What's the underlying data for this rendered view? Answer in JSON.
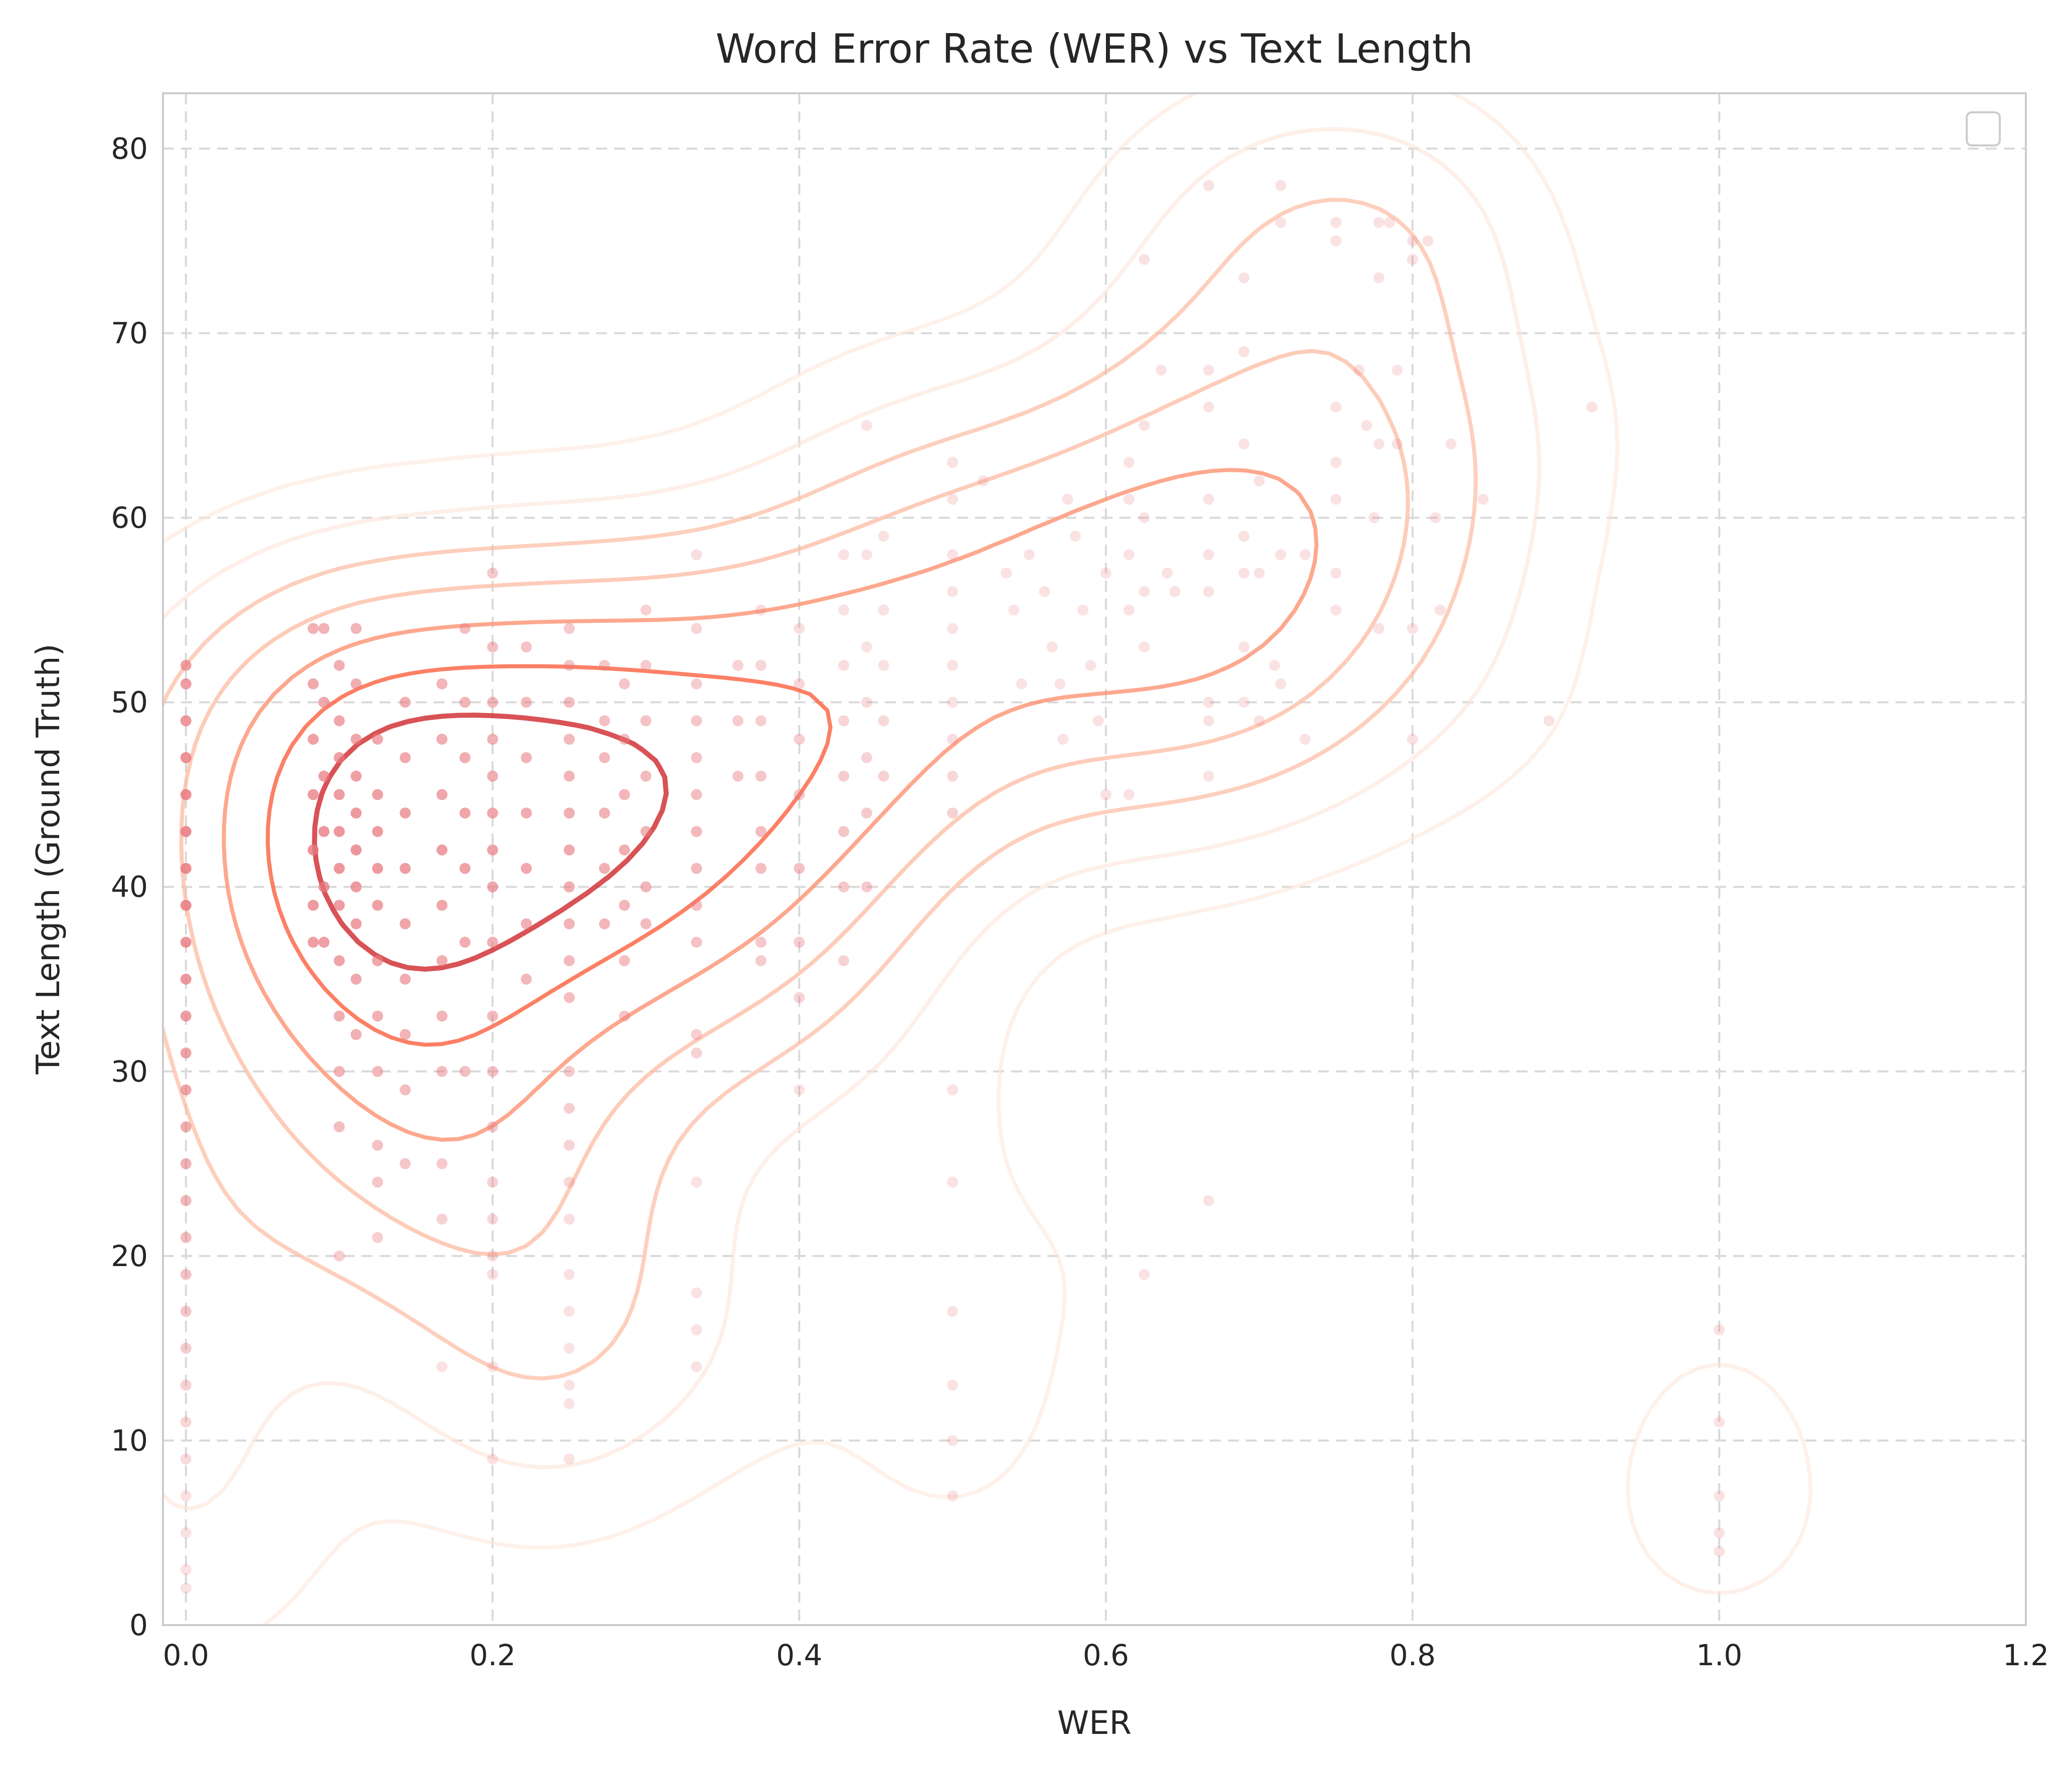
{
  "chart_data": {
    "type": "scatter",
    "title": "Word Error Rate (WER) vs Text Length",
    "xlabel": "WER",
    "ylabel": "Text Length (Ground Truth)",
    "xlim": [
      -0.015,
      1.2
    ],
    "ylim": [
      0,
      83
    ],
    "xticks": [
      "0.0",
      "0.2",
      "0.4",
      "0.6",
      "0.8",
      "1.0",
      "1.2"
    ],
    "yticks": [
      "0",
      "10",
      "20",
      "30",
      "40",
      "50",
      "60",
      "70",
      "80"
    ],
    "grid": true,
    "legend": "top-right (empty)",
    "point_color": "#e8797f",
    "contour_colors": [
      "#fee5d9",
      "#fcbba1",
      "#fc9272",
      "#fb6a4a",
      "#cb181d"
    ],
    "series": [
      {
        "values": [
          [
            0.0,
            2
          ],
          [
            0.0,
            3
          ],
          [
            0.0,
            5
          ],
          [
            0.0,
            7
          ],
          [
            0.0,
            9
          ],
          [
            0.0,
            11
          ],
          [
            0.0,
            13
          ],
          [
            0.0,
            15
          ],
          [
            0.0,
            17
          ],
          [
            0.0,
            19
          ],
          [
            0.0,
            21
          ],
          [
            0.0,
            23
          ],
          [
            0.0,
            25
          ],
          [
            0.0,
            27
          ],
          [
            0.0,
            29
          ],
          [
            0.0,
            31
          ],
          [
            0.0,
            33
          ],
          [
            0.0,
            35
          ],
          [
            0.0,
            37
          ],
          [
            0.0,
            39
          ],
          [
            0.0,
            41
          ],
          [
            0.0,
            43
          ],
          [
            0.0,
            45
          ],
          [
            0.0,
            47
          ],
          [
            0.0,
            49
          ],
          [
            0.0,
            51
          ],
          [
            0.0,
            52
          ],
          [
            0.083,
            54
          ],
          [
            0.083,
            51
          ],
          [
            0.083,
            48
          ],
          [
            0.083,
            45
          ],
          [
            0.083,
            42
          ],
          [
            0.083,
            39
          ],
          [
            0.083,
            37
          ],
          [
            0.09,
            54
          ],
          [
            0.09,
            50
          ],
          [
            0.09,
            46
          ],
          [
            0.09,
            43
          ],
          [
            0.09,
            40
          ],
          [
            0.09,
            37
          ],
          [
            0.1,
            52
          ],
          [
            0.1,
            49
          ],
          [
            0.1,
            47
          ],
          [
            0.1,
            45
          ],
          [
            0.1,
            43
          ],
          [
            0.1,
            41
          ],
          [
            0.1,
            39
          ],
          [
            0.1,
            36
          ],
          [
            0.1,
            33
          ],
          [
            0.1,
            30
          ],
          [
            0.1,
            27
          ],
          [
            0.1,
            20
          ],
          [
            0.111,
            54
          ],
          [
            0.111,
            51
          ],
          [
            0.111,
            48
          ],
          [
            0.111,
            46
          ],
          [
            0.111,
            44
          ],
          [
            0.111,
            42
          ],
          [
            0.111,
            40
          ],
          [
            0.111,
            38
          ],
          [
            0.111,
            35
          ],
          [
            0.111,
            32
          ],
          [
            0.125,
            48
          ],
          [
            0.125,
            45
          ],
          [
            0.125,
            43
          ],
          [
            0.125,
            41
          ],
          [
            0.125,
            39
          ],
          [
            0.125,
            36
          ],
          [
            0.125,
            33
          ],
          [
            0.125,
            30
          ],
          [
            0.125,
            26
          ],
          [
            0.125,
            24
          ],
          [
            0.125,
            21
          ],
          [
            0.143,
            50
          ],
          [
            0.143,
            47
          ],
          [
            0.143,
            44
          ],
          [
            0.143,
            41
          ],
          [
            0.143,
            38
          ],
          [
            0.143,
            35
          ],
          [
            0.143,
            32
          ],
          [
            0.143,
            29
          ],
          [
            0.143,
            25
          ],
          [
            0.167,
            51
          ],
          [
            0.167,
            48
          ],
          [
            0.167,
            45
          ],
          [
            0.167,
            42
          ],
          [
            0.167,
            39
          ],
          [
            0.167,
            36
          ],
          [
            0.167,
            33
          ],
          [
            0.167,
            30
          ],
          [
            0.167,
            25
          ],
          [
            0.167,
            22
          ],
          [
            0.167,
            14
          ],
          [
            0.182,
            54
          ],
          [
            0.182,
            50
          ],
          [
            0.182,
            47
          ],
          [
            0.182,
            44
          ],
          [
            0.182,
            41
          ],
          [
            0.182,
            37
          ],
          [
            0.182,
            30
          ],
          [
            0.2,
            57
          ],
          [
            0.2,
            53
          ],
          [
            0.2,
            50
          ],
          [
            0.2,
            48
          ],
          [
            0.2,
            46
          ],
          [
            0.2,
            44
          ],
          [
            0.2,
            42
          ],
          [
            0.2,
            40
          ],
          [
            0.2,
            37
          ],
          [
            0.2,
            33
          ],
          [
            0.2,
            30
          ],
          [
            0.2,
            27
          ],
          [
            0.2,
            24
          ],
          [
            0.2,
            22
          ],
          [
            0.2,
            20
          ],
          [
            0.2,
            19
          ],
          [
            0.2,
            14
          ],
          [
            0.2,
            9
          ],
          [
            0.222,
            53
          ],
          [
            0.222,
            50
          ],
          [
            0.222,
            47
          ],
          [
            0.222,
            44
          ],
          [
            0.222,
            41
          ],
          [
            0.222,
            38
          ],
          [
            0.222,
            35
          ],
          [
            0.25,
            54
          ],
          [
            0.25,
            52
          ],
          [
            0.25,
            50
          ],
          [
            0.25,
            48
          ],
          [
            0.25,
            46
          ],
          [
            0.25,
            44
          ],
          [
            0.25,
            42
          ],
          [
            0.25,
            40
          ],
          [
            0.25,
            38
          ],
          [
            0.25,
            36
          ],
          [
            0.25,
            34
          ],
          [
            0.25,
            30
          ],
          [
            0.25,
            28
          ],
          [
            0.25,
            26
          ],
          [
            0.25,
            24
          ],
          [
            0.25,
            22
          ],
          [
            0.25,
            19
          ],
          [
            0.25,
            17
          ],
          [
            0.25,
            15
          ],
          [
            0.25,
            13
          ],
          [
            0.25,
            12
          ],
          [
            0.25,
            9
          ],
          [
            0.273,
            52
          ],
          [
            0.273,
            49
          ],
          [
            0.273,
            47
          ],
          [
            0.273,
            44
          ],
          [
            0.273,
            41
          ],
          [
            0.273,
            38
          ],
          [
            0.286,
            51
          ],
          [
            0.286,
            48
          ],
          [
            0.286,
            45
          ],
          [
            0.286,
            42
          ],
          [
            0.286,
            39
          ],
          [
            0.286,
            36
          ],
          [
            0.286,
            33
          ],
          [
            0.3,
            55
          ],
          [
            0.3,
            52
          ],
          [
            0.3,
            49
          ],
          [
            0.3,
            46
          ],
          [
            0.3,
            43
          ],
          [
            0.3,
            40
          ],
          [
            0.3,
            38
          ],
          [
            0.333,
            58
          ],
          [
            0.333,
            54
          ],
          [
            0.333,
            51
          ],
          [
            0.333,
            49
          ],
          [
            0.333,
            47
          ],
          [
            0.333,
            45
          ],
          [
            0.333,
            43
          ],
          [
            0.333,
            41
          ],
          [
            0.333,
            39
          ],
          [
            0.333,
            37
          ],
          [
            0.333,
            32
          ],
          [
            0.333,
            31
          ],
          [
            0.333,
            24
          ],
          [
            0.333,
            18
          ],
          [
            0.333,
            16
          ],
          [
            0.333,
            14
          ],
          [
            0.36,
            52
          ],
          [
            0.36,
            49
          ],
          [
            0.36,
            46
          ],
          [
            0.375,
            55
          ],
          [
            0.375,
            52
          ],
          [
            0.375,
            49
          ],
          [
            0.375,
            46
          ],
          [
            0.375,
            43
          ],
          [
            0.375,
            41
          ],
          [
            0.375,
            37
          ],
          [
            0.375,
            36
          ],
          [
            0.4,
            54
          ],
          [
            0.4,
            51
          ],
          [
            0.4,
            48
          ],
          [
            0.4,
            45
          ],
          [
            0.4,
            41
          ],
          [
            0.4,
            37
          ],
          [
            0.4,
            34
          ],
          [
            0.4,
            29
          ],
          [
            0.429,
            58
          ],
          [
            0.429,
            55
          ],
          [
            0.429,
            52
          ],
          [
            0.429,
            49
          ],
          [
            0.429,
            46
          ],
          [
            0.429,
            43
          ],
          [
            0.429,
            40
          ],
          [
            0.429,
            36
          ],
          [
            0.444,
            65
          ],
          [
            0.444,
            58
          ],
          [
            0.444,
            53
          ],
          [
            0.444,
            50
          ],
          [
            0.444,
            47
          ],
          [
            0.444,
            44
          ],
          [
            0.444,
            40
          ],
          [
            0.455,
            59
          ],
          [
            0.455,
            55
          ],
          [
            0.455,
            52
          ],
          [
            0.455,
            49
          ],
          [
            0.455,
            46
          ],
          [
            0.5,
            63
          ],
          [
            0.5,
            61
          ],
          [
            0.5,
            58
          ],
          [
            0.5,
            56
          ],
          [
            0.5,
            54
          ],
          [
            0.5,
            52
          ],
          [
            0.5,
            50
          ],
          [
            0.5,
            48
          ],
          [
            0.5,
            46
          ],
          [
            0.5,
            44
          ],
          [
            0.5,
            29
          ],
          [
            0.5,
            24
          ],
          [
            0.5,
            17
          ],
          [
            0.5,
            13
          ],
          [
            0.5,
            10
          ],
          [
            0.5,
            7
          ],
          [
            0.52,
            62
          ],
          [
            0.535,
            57
          ],
          [
            0.54,
            55
          ],
          [
            0.545,
            51
          ],
          [
            0.55,
            58
          ],
          [
            0.56,
            56
          ],
          [
            0.565,
            53
          ],
          [
            0.57,
            51
          ],
          [
            0.572,
            48
          ],
          [
            0.575,
            61
          ],
          [
            0.58,
            59
          ],
          [
            0.585,
            55
          ],
          [
            0.59,
            52
          ],
          [
            0.595,
            49
          ],
          [
            0.6,
            57
          ],
          [
            0.6,
            45
          ],
          [
            0.615,
            63
          ],
          [
            0.615,
            61
          ],
          [
            0.615,
            58
          ],
          [
            0.615,
            55
          ],
          [
            0.615,
            45
          ],
          [
            0.625,
            74
          ],
          [
            0.625,
            65
          ],
          [
            0.625,
            60
          ],
          [
            0.625,
            56
          ],
          [
            0.625,
            53
          ],
          [
            0.625,
            19
          ],
          [
            0.636,
            68
          ],
          [
            0.64,
            57
          ],
          [
            0.645,
            56
          ],
          [
            0.667,
            78
          ],
          [
            0.667,
            68
          ],
          [
            0.667,
            66
          ],
          [
            0.667,
            61
          ],
          [
            0.667,
            58
          ],
          [
            0.667,
            56
          ],
          [
            0.667,
            50
          ],
          [
            0.667,
            49
          ],
          [
            0.667,
            46
          ],
          [
            0.667,
            23
          ],
          [
            0.69,
            73
          ],
          [
            0.69,
            69
          ],
          [
            0.69,
            64
          ],
          [
            0.69,
            59
          ],
          [
            0.69,
            57
          ],
          [
            0.69,
            53
          ],
          [
            0.69,
            50
          ],
          [
            0.7,
            62
          ],
          [
            0.7,
            57
          ],
          [
            0.7,
            49
          ],
          [
            0.71,
            52
          ],
          [
            0.714,
            78
          ],
          [
            0.714,
            76
          ],
          [
            0.714,
            58
          ],
          [
            0.714,
            51
          ],
          [
            0.73,
            58
          ],
          [
            0.73,
            48
          ],
          [
            0.75,
            76
          ],
          [
            0.75,
            75
          ],
          [
            0.75,
            66
          ],
          [
            0.75,
            63
          ],
          [
            0.75,
            61
          ],
          [
            0.75,
            57
          ],
          [
            0.75,
            55
          ],
          [
            0.765,
            68
          ],
          [
            0.77,
            65
          ],
          [
            0.775,
            60
          ],
          [
            0.778,
            76
          ],
          [
            0.778,
            73
          ],
          [
            0.778,
            64
          ],
          [
            0.778,
            54
          ],
          [
            0.785,
            76
          ],
          [
            0.79,
            68
          ],
          [
            0.79,
            64
          ],
          [
            0.8,
            75
          ],
          [
            0.8,
            74
          ],
          [
            0.8,
            54
          ],
          [
            0.8,
            48
          ],
          [
            0.81,
            75
          ],
          [
            0.815,
            60
          ],
          [
            0.818,
            55
          ],
          [
            0.825,
            64
          ],
          [
            0.846,
            61
          ],
          [
            0.889,
            49
          ],
          [
            0.917,
            66
          ],
          [
            1.0,
            16
          ],
          [
            1.0,
            11
          ],
          [
            1.0,
            7
          ],
          [
            1.0,
            5
          ],
          [
            1.0,
            4
          ]
        ]
      }
    ]
  }
}
